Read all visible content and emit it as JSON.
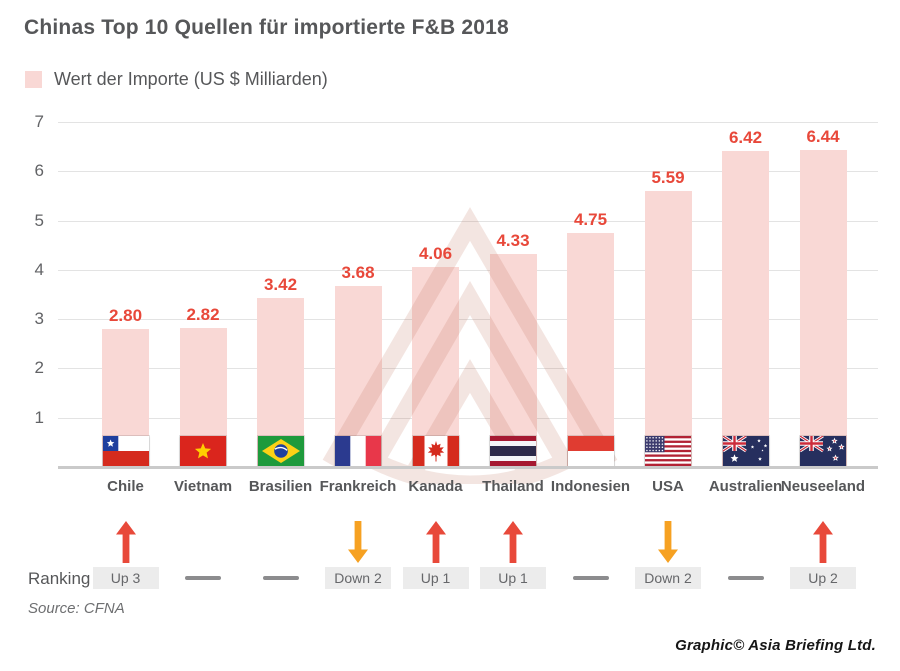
{
  "header": {
    "title": "Chinas Top 10 Quellen für importierte F&B 2018"
  },
  "legend": {
    "label": "Wert der Importe (US $ Milliarden)",
    "swatch_color": "#f9d8d5"
  },
  "ranking": {
    "label": "Ranking"
  },
  "footer": {
    "source": "Source: CFNA",
    "credit": "Graphic© Asia Briefing Ltd."
  },
  "chart_data": {
    "type": "bar",
    "title": "Chinas Top 10 Quellen für importierte F&B 2018",
    "legend_label": "Wert der Importe (US $ Milliarden)",
    "xlabel": "",
    "ylabel": "Wert der Importe (US $ Milliarden)",
    "ylim": [
      0,
      7
    ],
    "yticks": [
      1,
      2,
      3,
      4,
      5,
      6,
      7
    ],
    "grid": true,
    "legend_position": "top-left",
    "categories": [
      "Chile",
      "Vietnam",
      "Brasilien",
      "Frankreich",
      "Kanada",
      "Thailand",
      "Indonesien",
      "USA",
      "Australien",
      "Neuseeland"
    ],
    "values": [
      2.8,
      2.82,
      3.42,
      3.68,
      4.06,
      4.33,
      4.75,
      5.59,
      6.42,
      6.44
    ],
    "value_labels": [
      "2.80",
      "2.82",
      "3.42",
      "3.68",
      "4.06",
      "4.33",
      "4.75",
      "5.59",
      "6.42",
      "6.44"
    ],
    "flags": [
      "chile",
      "vietnam",
      "brazil",
      "france",
      "canada",
      "thailand",
      "indonesia",
      "usa",
      "australia",
      "newzealand"
    ],
    "rankings": [
      {
        "change": "up",
        "label": "Up 3"
      },
      {
        "change": "none",
        "label": ""
      },
      {
        "change": "none",
        "label": ""
      },
      {
        "change": "down",
        "label": "Down 2"
      },
      {
        "change": "up",
        "label": "Up 1"
      },
      {
        "change": "up",
        "label": "Up 1"
      },
      {
        "change": "none",
        "label": ""
      },
      {
        "change": "down",
        "label": "Down 2"
      },
      {
        "change": "none",
        "label": ""
      },
      {
        "change": "up",
        "label": "Up 2"
      }
    ],
    "colors": {
      "bar": "#f9d8d5",
      "value_label": "#e8483a",
      "up_arrow": "#e8493a",
      "down_arrow": "#f6a122",
      "dash": "#8c8c8e",
      "badge_bg": "#ececec",
      "badge_text": "#66676a",
      "gridline": "#e3e3e3",
      "axis": "#cacaca",
      "text": "#565759"
    }
  }
}
